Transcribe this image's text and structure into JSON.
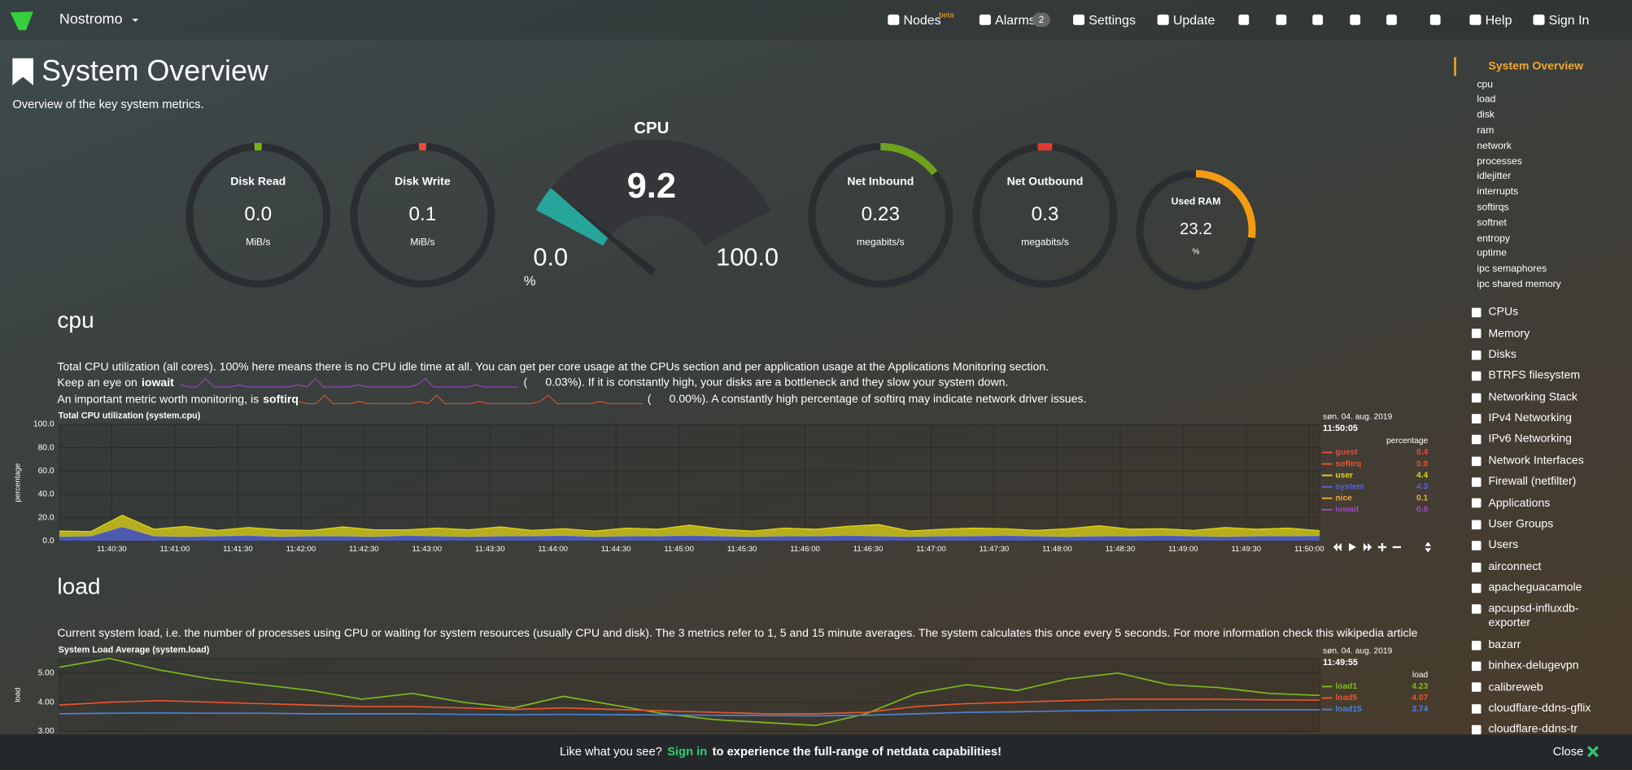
{
  "navbar": {
    "brand": "Nostromo",
    "items": [
      {
        "label": "Nodes",
        "badge": "beta"
      },
      {
        "label": "Alarms",
        "badge": "2"
      },
      {
        "label": "Settings"
      },
      {
        "label": "Update"
      },
      {
        "label": "Help"
      },
      {
        "label": "Sign In"
      }
    ]
  },
  "header": {
    "title": "System Overview",
    "subtitle": "Overview of the key system metrics."
  },
  "gauges": [
    {
      "title": "Disk Read",
      "value": "0.0",
      "units": "MiB/s"
    },
    {
      "title": "Disk Write",
      "value": "0.1",
      "units": "MiB/s"
    },
    {
      "title": "Net Inbound",
      "value": "0.23",
      "units": "megabits/s"
    },
    {
      "title": "Net Outbound",
      "value": "0.3",
      "units": "megabits/s"
    },
    {
      "title": "Used RAM",
      "value": "23.2",
      "units": "%"
    }
  ],
  "cpu_gauge": {
    "title": "CPU",
    "value": "9.2",
    "min": "0.0",
    "max": "100.0",
    "units": "%"
  },
  "sections": [
    {
      "heading": "cpu",
      "description": "Total CPU utilization (all cores). 100% here means there is no CPU idle time at all. You can get per core usage at the CPUs section and per application usage at the Applications Monitoring section.",
      "notes": [
        {
          "before": "Keep an eye on",
          "term": "iowait",
          "paren": "(",
          "after": "0.03%). If it is constantly high, your disks are a bottleneck and they slow your system down."
        },
        {
          "before": "An important metric worth monitoring, is",
          "term": "softirq",
          "paren": "(",
          "after": "0.00%). A constantly high percentage of softirq may indicate network driver issues."
        }
      ],
      "chart": {
        "title": "Total CPU utilization (system.cpu)",
        "y_label": "percentage",
        "ylim": [
          0,
          100
        ],
        "yticks": [
          {
            "value": 100,
            "label": "100.0"
          },
          {
            "value": 80,
            "label": "80.0"
          },
          {
            "value": 60,
            "label": "60.0"
          },
          {
            "value": 40,
            "label": "40.0"
          },
          {
            "value": 20,
            "label": "20.0"
          },
          {
            "value": 0,
            "label": "0.0"
          }
        ],
        "xticks": [
          "11:40:30",
          "11:41:00",
          "11:41:30",
          "11:42:00",
          "11:42:30",
          "11:43:00",
          "11:43:30",
          "11:44:00",
          "11:44:30",
          "11:45:00",
          "11:45:30",
          "11:46:00",
          "11:46:30",
          "11:47:00",
          "11:47:30",
          "11:48:00",
          "11:48:30",
          "11:49:00",
          "11:49:30",
          "11:50:00"
        ],
        "date": "søn. 04. aug. 2019",
        "time": "11:50:05",
        "units": "percentage",
        "series": [
          {
            "name": "guest",
            "color": "#e74c3c",
            "legend_value": "0.4"
          },
          {
            "name": "softirq",
            "color": "#e8552b",
            "legend_value": "0.0"
          },
          {
            "name": "user",
            "color": "#e0d516",
            "legend_value": "4.4",
            "values": [
              5,
              4,
              10,
              6,
              9,
              5,
              7,
              6,
              5,
              8,
              6,
              5,
              7,
              6,
              8,
              5,
              6,
              5,
              7,
              6,
              9,
              6,
              5,
              7,
              6,
              8,
              10,
              5,
              6,
              7,
              6,
              5,
              7,
              9,
              6,
              6,
              5,
              8,
              6,
              7,
              4.4
            ]
          },
          {
            "name": "system",
            "color": "#5466d6",
            "legend_value": "4.3",
            "values": [
              3.5,
              4,
              12,
              4,
              3.5,
              4,
              4.5,
              3.5,
              4,
              4,
              3.5,
              4.5,
              4,
              3.5,
              4,
              4,
              4.5,
              3.5,
              4,
              4,
              4.5,
              4,
              3.5,
              4,
              4,
              4.5,
              4,
              3.5,
              4,
              4,
              4.5,
              4,
              3.5,
              4,
              4,
              4.5,
              4,
              3.5,
              4,
              4,
              4.3
            ]
          },
          {
            "name": "nice",
            "color": "#f0a830",
            "legend_value": "0.1"
          },
          {
            "name": "iowait",
            "color": "#a347c9",
            "legend_value": "0.0"
          }
        ]
      }
    },
    {
      "heading": "load",
      "description": "Current system load, i.e. the number of processes using CPU or waiting for system resources (usually CPU and disk). The 3 metrics refer to 1, 5 and 15 minute averages. The system calculates this once every 5 seconds. For more information check this wikipedia article",
      "chart": {
        "title": "System Load Average (system.load)",
        "y_label": "load",
        "ylim": [
          3,
          5.5
        ],
        "yticks": [
          {
            "value": 5,
            "label": "5.00"
          },
          {
            "value": 4,
            "label": "4.00"
          },
          {
            "value": 3,
            "label": "3.00"
          }
        ],
        "date": "søn. 04. aug. 2019",
        "time": "11:49:55",
        "units": "load",
        "series": [
          {
            "name": "load1",
            "color": "#7cbb1e",
            "legend_value": "4.23",
            "values": [
              5.2,
              5.5,
              5.1,
              4.8,
              4.6,
              4.4,
              4.1,
              4.3,
              4.0,
              3.8,
              4.2,
              3.9,
              3.6,
              3.4,
              3.3,
              3.2,
              3.6,
              4.3,
              4.6,
              4.4,
              4.8,
              5.0,
              4.6,
              4.5,
              4.3,
              4.23
            ]
          },
          {
            "name": "load5",
            "color": "#e8552b",
            "legend_value": "4.07",
            "values": [
              3.9,
              4.0,
              4.05,
              4.0,
              3.95,
              3.9,
              3.85,
              3.85,
              3.8,
              3.75,
              3.8,
              3.75,
              3.7,
              3.65,
              3.6,
              3.6,
              3.65,
              3.85,
              3.95,
              4.0,
              4.05,
              4.1,
              4.1,
              4.1,
              4.08,
              4.07
            ]
          },
          {
            "name": "load15",
            "color": "#4a82d8",
            "legend_value": "3.74",
            "values": [
              3.6,
              3.62,
              3.63,
              3.62,
              3.62,
              3.6,
              3.6,
              3.6,
              3.58,
              3.57,
              3.58,
              3.57,
              3.56,
              3.55,
              3.54,
              3.53,
              3.55,
              3.6,
              3.65,
              3.67,
              3.7,
              3.72,
              3.73,
              3.74,
              3.74,
              3.74
            ]
          }
        ]
      }
    }
  ],
  "sidebar": {
    "active": "System Overview",
    "subitems": [
      "cpu",
      "load",
      "disk",
      "ram",
      "network",
      "processes",
      "idlejitter",
      "interrupts",
      "softirqs",
      "softnet",
      "entropy",
      "uptime",
      "ipc semaphores",
      "ipc shared memory"
    ],
    "sections": [
      "CPUs",
      "Memory",
      "Disks",
      "BTRFS filesystem",
      "Networking Stack",
      "IPv4 Networking",
      "IPv6 Networking",
      "Network Interfaces",
      "Firewall (netfilter)",
      "Applications",
      "User Groups",
      "Users",
      "airconnect",
      "apacheguacamole",
      "apcupsd-influxdb-exporter",
      "bazarr",
      "binhex-delugevpn",
      "calibreweb",
      "cloudflare-ddns-gflix",
      "cloudflare-ddns-tr"
    ]
  },
  "footer": {
    "lead": "Like what you see?",
    "link": "Sign in",
    "rest": "to experience the full-range of netdata capabilities!",
    "close": "Close"
  }
}
